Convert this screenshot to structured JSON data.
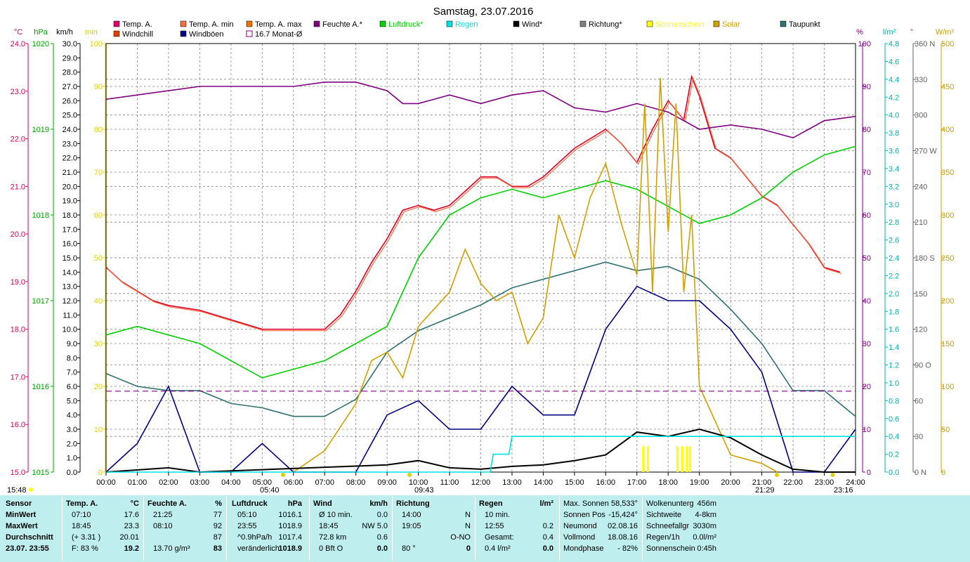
{
  "title": "Samstag, 23.07.2016",
  "axes": {
    "temp": {
      "unit": "°C",
      "color": "#d40060",
      "ticks": [
        "24.0",
        "23.0",
        "22.0",
        "21.0",
        "20.0",
        "19.0",
        "18.0",
        "17.0",
        "16.0",
        "15.0"
      ]
    },
    "hpa": {
      "unit": "hPa",
      "color": "#00a000",
      "ticks": [
        "1020",
        "1019",
        "1018",
        "1017",
        "1016",
        "1015"
      ]
    },
    "kmh": {
      "unit": "km/h",
      "color": "#000000",
      "ticks": [
        "30.0",
        "29.0",
        "28.0",
        "27.0",
        "26.0",
        "25.0",
        "24.0",
        "23.0",
        "22.0",
        "21.0",
        "20.0",
        "19.0",
        "18.0",
        "17.0",
        "16.0",
        "15.0",
        "14.0",
        "13.0",
        "12.0",
        "11.0",
        "10.0",
        "9.0",
        "8.0",
        "7.0",
        "6.0",
        "5.0",
        "4.0",
        "3.0",
        "2.0",
        "1.0",
        "0.0"
      ]
    },
    "min": {
      "unit": "min",
      "color": "#e0d000",
      "ticks": [
        "100",
        "90",
        "80",
        "70",
        "60",
        "50",
        "40",
        "30",
        "20",
        "10",
        "0"
      ]
    },
    "pct": {
      "unit": "%",
      "color": "#800080",
      "ticks": [
        "100",
        "90",
        "80",
        "70",
        "60",
        "50",
        "40",
        "30",
        "20",
        "10",
        "0"
      ]
    },
    "lqm": {
      "unit": "l/m²",
      "color": "#00b0b0",
      "ticks": [
        "4.8",
        "4.6",
        "4.4",
        "4.2",
        "4.0",
        "3.8",
        "3.6",
        "3.4",
        "3.2",
        "3.0",
        "2.8",
        "2.6",
        "2.4",
        "2.2",
        "2.0",
        "1.8",
        "1.6",
        "1.4",
        "1.2",
        "1.0",
        "0.8",
        "0.6",
        "0.4",
        "0.2",
        "0.0"
      ]
    },
    "deg": {
      "unit": "°",
      "color": "#606060",
      "ticks": [
        "360 N",
        "330",
        "300",
        "270 W",
        "240",
        "210",
        "180 S",
        "150",
        "120",
        "90  O",
        "60",
        "30",
        "0    N"
      ]
    },
    "wqm": {
      "unit": "W/m²",
      "color": "#c8a000",
      "ticks": [
        "500",
        "450",
        "400",
        "350",
        "300",
        "250",
        "200",
        "150",
        "100",
        "50",
        "0"
      ]
    },
    "time": [
      "00:00",
      "01:00",
      "02:00",
      "03:00",
      "04:00",
      "05:00",
      "06:00",
      "07:00",
      "08:00",
      "09:00",
      "10:00",
      "11:00",
      "12:00",
      "13:00",
      "14:00",
      "15:00",
      "16:00",
      "17:00",
      "18:00",
      "19:00",
      "20:00",
      "21:00",
      "22:00",
      "23:00",
      "24:00"
    ]
  },
  "legend": [
    {
      "label": "Temp. A.",
      "color": "#e0006a"
    },
    {
      "label": "Temp. A. min",
      "color": "#f07040"
    },
    {
      "label": "Temp. A. max",
      "color": "#f07000"
    },
    {
      "label": "Feuchte A.*",
      "color": "#800080"
    },
    {
      "label": "Luftdruck*",
      "color": "#00d000"
    },
    {
      "label": "Regen",
      "color": "#00e0e0"
    },
    {
      "label": "Wind*",
      "color": "#000000"
    },
    {
      "label": "Richtung*",
      "color": "#808080"
    },
    {
      "label": "Sonnenschein",
      "color": "#ffff00"
    },
    {
      "label": "Solar",
      "color": "#d0a000"
    },
    {
      "label": "Taupunkt",
      "color": "#307070"
    },
    {
      "label": "Windchill",
      "color": "#e04000"
    },
    {
      "label": "Windböen",
      "color": "#000080"
    },
    {
      "label": "16.7 Monat-Ø",
      "color": "#800080"
    }
  ],
  "markers": {
    "sunrise": "05:40",
    "noon": "09:43",
    "sunset": "21:29",
    "moon": "23:16",
    "start": "15:48"
  },
  "chart_data": {
    "type": "line",
    "x_unit": "hour of day",
    "xlim": [
      0,
      24
    ],
    "series": [
      {
        "name": "Temp. A.",
        "axis": "temp",
        "x": [
          0,
          0.5,
          1,
          1.5,
          2,
          3,
          4,
          5,
          6,
          7,
          7.5,
          8,
          8.5,
          9,
          9.5,
          10,
          10.5,
          11,
          11.5,
          12,
          12.5,
          13,
          13.5,
          14,
          14.5,
          15,
          15.5,
          16,
          16.5,
          17,
          17.5,
          18,
          18.5,
          18.75,
          19,
          19.5,
          20,
          20.5,
          21,
          21.5,
          22,
          22.5,
          23,
          23.5
        ],
        "y": [
          19.3,
          19.0,
          18.8,
          18.6,
          18.5,
          18.4,
          18.2,
          18.0,
          18.0,
          18.0,
          18.3,
          18.8,
          19.4,
          19.9,
          20.5,
          20.6,
          20.5,
          20.6,
          20.9,
          21.2,
          21.2,
          21.0,
          21.0,
          21.2,
          21.5,
          21.8,
          22.0,
          22.2,
          21.9,
          21.5,
          22.2,
          22.8,
          22.4,
          23.3,
          22.9,
          21.8,
          21.6,
          21.2,
          20.8,
          20.6,
          20.2,
          19.8,
          19.3,
          19.2
        ]
      },
      {
        "name": "Luftdruck*",
        "axis": "hpa",
        "x": [
          0,
          1,
          2,
          3,
          4,
          5,
          6,
          7,
          8,
          9,
          10,
          11,
          12,
          13,
          14,
          15,
          16,
          17,
          18,
          19,
          20,
          21,
          22,
          23,
          24
        ],
        "y": [
          1016.6,
          1016.7,
          1016.6,
          1016.5,
          1016.3,
          1016.1,
          1016.2,
          1016.3,
          1016.5,
          1016.7,
          1017.5,
          1018.0,
          1018.2,
          1018.3,
          1018.2,
          1018.3,
          1018.4,
          1018.3,
          1018.1,
          1017.9,
          1018.0,
          1018.2,
          1018.5,
          1018.7,
          1018.8
        ]
      },
      {
        "name": "Feuchte A.*",
        "axis": "pct",
        "x": [
          0,
          1,
          2,
          3,
          4,
          5,
          6,
          7,
          8,
          9,
          9.5,
          10,
          11,
          12,
          13,
          14,
          15,
          16,
          17,
          18,
          19,
          20,
          21,
          22,
          23,
          24
        ],
        "y": [
          87,
          88,
          89,
          90,
          90,
          90,
          90,
          91,
          91,
          89,
          86,
          86,
          88,
          86,
          88,
          89,
          85,
          84,
          86,
          84,
          80,
          81,
          80,
          78,
          82,
          83
        ]
      },
      {
        "name": "Taupunkt",
        "axis": "pct",
        "x": [
          0,
          1,
          2,
          3,
          4,
          5,
          6,
          7,
          8,
          9,
          10,
          11,
          12,
          13,
          14,
          15,
          16,
          17,
          18,
          19,
          20,
          21,
          22,
          23,
          24
        ],
        "y": [
          23,
          20,
          19,
          19,
          16,
          15,
          13,
          13,
          17,
          28,
          33,
          36,
          39,
          43,
          45,
          47,
          49,
          47,
          48,
          45,
          38,
          30,
          19,
          19,
          13
        ]
      },
      {
        "name": "Solar",
        "axis": "wqm",
        "x": [
          6,
          7,
          8,
          8.5,
          9,
          9.5,
          10,
          10.5,
          11,
          11.5,
          12,
          12.5,
          13,
          13.5,
          14,
          14.5,
          15,
          15.5,
          16,
          16.5,
          17,
          17.25,
          17.5,
          17.75,
          18,
          18.25,
          18.5,
          18.75,
          19,
          19.5,
          20,
          20.5,
          21,
          21.5
        ],
        "y": [
          0,
          25,
          80,
          130,
          140,
          110,
          170,
          190,
          210,
          260,
          220,
          200,
          210,
          150,
          180,
          300,
          250,
          320,
          360,
          290,
          230,
          430,
          210,
          460,
          280,
          430,
          210,
          300,
          100,
          60,
          20,
          15,
          10,
          0
        ]
      },
      {
        "name": "Windböen",
        "axis": "kmh",
        "x": [
          0,
          1,
          2,
          3,
          4,
          5,
          6,
          7,
          8,
          9,
          10,
          11,
          12,
          13,
          14,
          15,
          16,
          17,
          18,
          19,
          20,
          21,
          22,
          23,
          24
        ],
        "y": [
          0,
          2,
          6,
          0,
          0,
          2,
          0,
          0,
          0,
          4,
          5,
          3,
          3,
          6,
          4,
          4,
          10,
          13,
          12,
          12,
          10,
          7,
          0,
          0,
          3
        ]
      },
      {
        "name": "Wind*",
        "axis": "kmh",
        "x": [
          0,
          2,
          3,
          9,
          10,
          11,
          12,
          13,
          14,
          15,
          16,
          17,
          18,
          19,
          20,
          21,
          22,
          23,
          24
        ],
        "y": [
          0,
          0.3,
          0,
          0.5,
          0.8,
          0.3,
          0.2,
          0.4,
          0.5,
          0.8,
          1.2,
          2.8,
          2.5,
          3.0,
          2.4,
          1.2,
          0.2,
          0,
          0
        ]
      },
      {
        "name": "Regen",
        "axis": "lqm",
        "x": [
          0,
          12.3,
          12.4,
          12.9,
          13,
          24
        ],
        "y": [
          0,
          0,
          0.2,
          0.2,
          0.4,
          0.4
        ]
      },
      {
        "name": "16.7 Monat-Ø",
        "axis": "temp",
        "x": [
          0,
          24
        ],
        "y": [
          16.7,
          16.7
        ]
      }
    ]
  },
  "panel": {
    "sensor": {
      "head": "Sensor",
      "rows": [
        "MinWert",
        "MaxWert",
        "Durchschnitt",
        "23.07. 23:55"
      ]
    },
    "temp": {
      "head": "Temp. A.",
      "unit": "°C",
      "rows": [
        [
          "07:10",
          "17.6"
        ],
        [
          "18:45",
          "23.3"
        ],
        [
          "(+ 3.31 )",
          "20.01"
        ],
        [
          "F: 83 %",
          "19.2"
        ]
      ]
    },
    "hum": {
      "head": "Feuchte A.",
      "unit": "%",
      "rows": [
        [
          "21:25",
          "77"
        ],
        [
          "08:10",
          "92"
        ],
        [
          "",
          "87"
        ],
        [
          "13.70 g/m³",
          "83"
        ]
      ]
    },
    "press": {
      "head": "Luftdruck",
      "unit": "hPa",
      "rows": [
        [
          "05:10",
          "1016.1"
        ],
        [
          "23:55",
          "1018.9"
        ],
        [
          "^0.9hPa/h",
          "1017.4"
        ],
        [
          "veränderlich",
          "1018.9"
        ]
      ]
    },
    "wind": {
      "head": "Wind",
      "unit": "km/h",
      "rows": [
        [
          "Ø 10 min.",
          "0.0"
        ],
        [
          "18:45",
          "NW 5.0"
        ],
        [
          "72.8 km",
          "0.6"
        ],
        [
          "0 Bft O",
          "0.0"
        ]
      ]
    },
    "dir": {
      "head": "Richtung",
      "rows": [
        [
          "14:00",
          "N"
        ],
        [
          "19:05",
          "N"
        ],
        [
          "",
          "O-NO"
        ],
        [
          "80 °",
          "0"
        ]
      ]
    },
    "rain": {
      "head": "Regen",
      "unit": "l/m²",
      "rows": [
        [
          "10 min.",
          ""
        ],
        [
          "12:55",
          "0.2"
        ],
        [
          "Gesamt:",
          "0.4"
        ],
        [
          "0.4 l/m²",
          "0.0"
        ]
      ]
    },
    "astro": [
      [
        "Max. Sonnen",
        "58,533°"
      ],
      [
        "Sonnen Pos",
        "-15,424°"
      ],
      [
        "Neumond",
        "02.08.16"
      ],
      [
        "Vollmond",
        "18.08.16"
      ],
      [
        "Mondphase",
        "- 82%"
      ]
    ],
    "misc": [
      [
        "Wolkenunterg",
        "456m"
      ],
      [
        "Sichtweite",
        "4-8km"
      ],
      [
        "Schneefallgr",
        "3030m"
      ],
      [
        "Regen/1h",
        "0.0l/m²"
      ],
      [
        "Sonnenschein",
        "0:45h"
      ]
    ]
  }
}
